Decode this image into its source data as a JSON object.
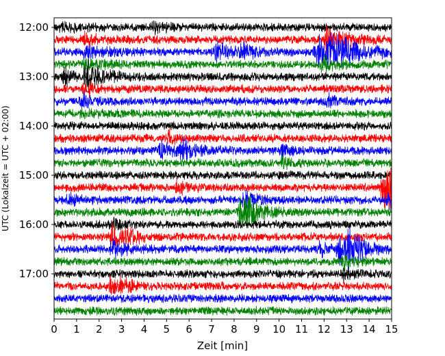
{
  "chart_data": {
    "type": "line",
    "subtype": "helicorder",
    "title": "",
    "xlabel": "Zeit  [min]",
    "ylabel": "UTC (Lokalzeit = UTC + 02:00)",
    "xlim": [
      0,
      15
    ],
    "x_ticks": [
      "0",
      "1",
      "2",
      "3",
      "4",
      "5",
      "6",
      "7",
      "8",
      "9",
      "10",
      "11",
      "12",
      "13",
      "14",
      "15"
    ],
    "y_ticks": [
      "12:00",
      "13:00",
      "14:00",
      "15:00",
      "16:00",
      "17:00"
    ],
    "trace_interval_min": 15,
    "grid": "vertical minute lines",
    "trace_colors": [
      "#000000",
      "#ff0000",
      "#0000ff",
      "#008000"
    ],
    "series": [
      {
        "start": "12:00",
        "color": "#000000",
        "bursts": [
          [
            0.4,
            1.0,
            2.0
          ],
          [
            4.4,
            1.0,
            2.0
          ]
        ]
      },
      {
        "start": "12:15",
        "color": "#ff0000",
        "bursts": [
          [
            1.3,
            1.2,
            2.5
          ],
          [
            12.1,
            2.6,
            4.0
          ]
        ]
      },
      {
        "start": "12:30",
        "color": "#0000ff",
        "bursts": [
          [
            1.4,
            1.3,
            3.0
          ],
          [
            7.2,
            1.8,
            3.0
          ],
          [
            8.2,
            1.6,
            2.5
          ],
          [
            11.7,
            3.2,
            6.0
          ],
          [
            12.3,
            2.4,
            3.0
          ]
        ]
      },
      {
        "start": "12:45",
        "color": "#008000",
        "bursts": [
          [
            1.4,
            1.5,
            3.0
          ],
          [
            11.9,
            1.6,
            2.5
          ]
        ]
      },
      {
        "start": "13:00",
        "color": "#000000",
        "bursts": [
          [
            1.4,
            3.2,
            3.0
          ],
          [
            0.5,
            1.6,
            1.5
          ]
        ]
      },
      {
        "start": "13:15",
        "color": "#ff0000",
        "bursts": [
          [
            1.4,
            1.6,
            1.5
          ]
        ]
      },
      {
        "start": "13:30",
        "color": "#0000ff",
        "bursts": [
          [
            1.3,
            1.8,
            1.5
          ],
          [
            12.2,
            1.4,
            1.0
          ]
        ]
      },
      {
        "start": "13:45",
        "color": "#008000",
        "bursts": [
          [
            1.3,
            1.4,
            1.5
          ]
        ]
      },
      {
        "start": "14:00",
        "color": "#000000",
        "bursts": []
      },
      {
        "start": "14:15",
        "color": "#ff0000",
        "bursts": [
          [
            5.1,
            1.4,
            1.5
          ]
        ]
      },
      {
        "start": "14:30",
        "color": "#0000ff",
        "bursts": [
          [
            4.8,
            2.2,
            2.5
          ],
          [
            5.7,
            2.0,
            2.5
          ],
          [
            10.2,
            1.6,
            1.5
          ]
        ]
      },
      {
        "start": "14:45",
        "color": "#008000",
        "bursts": [
          [
            10.2,
            1.4,
            1.0
          ]
        ]
      },
      {
        "start": "15:00",
        "color": "#000000",
        "bursts": []
      },
      {
        "start": "15:15",
        "color": "#ff0000",
        "bursts": [
          [
            5.5,
            1.4,
            1.5
          ],
          [
            14.6,
            3.2,
            3.0
          ],
          [
            14.8,
            4.2,
            1.5
          ]
        ]
      },
      {
        "start": "15:30",
        "color": "#0000ff",
        "bursts": [
          [
            0.7,
            2.4,
            1.2
          ],
          [
            8.5,
            2.4,
            1.5
          ],
          [
            14.9,
            1.6,
            0.8
          ]
        ]
      },
      {
        "start": "15:45",
        "color": "#008000",
        "bursts": [
          [
            8.3,
            3.0,
            2.0
          ],
          [
            8.6,
            2.4,
            2.5
          ]
        ]
      },
      {
        "start": "16:00",
        "color": "#000000",
        "bursts": [
          [
            2.6,
            1.4,
            1.5
          ]
        ]
      },
      {
        "start": "16:15",
        "color": "#ff0000",
        "bursts": [
          [
            2.6,
            3.2,
            2.0
          ],
          [
            3.3,
            1.6,
            1.5
          ]
        ]
      },
      {
        "start": "16:30",
        "color": "#0000ff",
        "bursts": [
          [
            2.6,
            2.0,
            2.0
          ],
          [
            11.8,
            1.6,
            1.5
          ],
          [
            12.7,
            3.2,
            2.5
          ],
          [
            13.1,
            3.0,
            2.5
          ]
        ]
      },
      {
        "start": "16:45",
        "color": "#008000",
        "bursts": [
          [
            12.9,
            1.6,
            1.5
          ]
        ]
      },
      {
        "start": "17:00",
        "color": "#000000",
        "bursts": [
          [
            12.9,
            1.4,
            1.5
          ]
        ]
      },
      {
        "start": "17:15",
        "color": "#ff0000",
        "bursts": [
          [
            2.5,
            1.4,
            2.0
          ],
          [
            3.0,
            1.3,
            1.5
          ]
        ]
      },
      {
        "start": "17:30",
        "color": "#0000ff",
        "bursts": []
      },
      {
        "start": "17:45",
        "color": "#008000",
        "bursts": []
      }
    ]
  }
}
